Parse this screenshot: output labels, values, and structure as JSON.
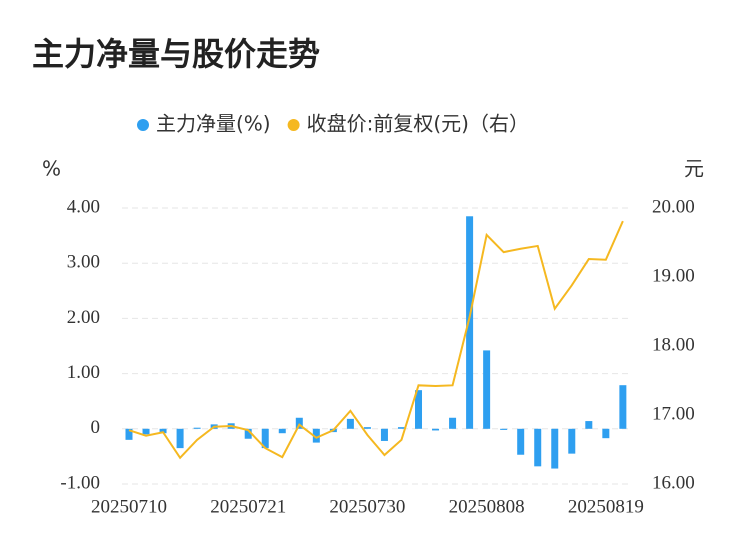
{
  "chart_data": {
    "type": "bar-line",
    "title": "主力净量与股价走势",
    "y_label": "%",
    "y2_label": "元",
    "categories": [
      "20250710",
      null,
      null,
      null,
      null,
      null,
      null,
      "20250721",
      null,
      null,
      null,
      null,
      null,
      null,
      "20250730",
      null,
      null,
      null,
      null,
      null,
      null,
      "20250808",
      null,
      null,
      null,
      null,
      null,
      null,
      "20250819",
      null
    ],
    "series": [
      {
        "name": "主力净量(%)",
        "type": "bar",
        "color": "#2e9ff0",
        "axis": "y",
        "values": [
          -0.2,
          -0.1,
          -0.08,
          -0.35,
          0.02,
          0.08,
          0.1,
          -0.18,
          -0.35,
          -0.08,
          0.2,
          -0.25,
          -0.06,
          0.18,
          0.03,
          -0.22,
          0.03,
          0.7,
          -0.03,
          0.2,
          3.85,
          1.42,
          -0.02,
          -0.47,
          -0.68,
          -0.72,
          -0.45,
          0.14,
          -0.17,
          0.79
        ]
      },
      {
        "name": "收盘价:前复权(元)（右）",
        "type": "line",
        "color": "#f5b820",
        "axis": "y2",
        "values": [
          16.78,
          16.7,
          16.75,
          16.38,
          16.64,
          16.83,
          16.84,
          16.78,
          16.52,
          16.39,
          16.86,
          16.67,
          16.78,
          17.06,
          16.71,
          16.42,
          16.64,
          17.43,
          17.42,
          17.43,
          18.42,
          19.61,
          19.36,
          19.41,
          19.45,
          18.54,
          18.88,
          19.26,
          19.25,
          19.81
        ]
      }
    ],
    "ylim": [
      -1,
      4
    ],
    "yticks": [
      {
        "value": -1,
        "label": "-1.00"
      },
      0,
      {
        "value": 1,
        "label": "1.00"
      },
      {
        "value": 2,
        "label": "2.00"
      },
      {
        "value": 3,
        "label": "3.00"
      },
      {
        "value": 4,
        "label": "4.00"
      }
    ],
    "y2lim": [
      16,
      20
    ],
    "y2ticks": [
      {
        "value": 16,
        "label": "16.00"
      },
      {
        "value": 17,
        "label": "17.00"
      },
      {
        "value": 18,
        "label": "18.00"
      },
      {
        "value": 19,
        "label": "19.00"
      },
      {
        "value": 20,
        "label": "20.00"
      }
    ],
    "grid": true,
    "legend": "top"
  }
}
